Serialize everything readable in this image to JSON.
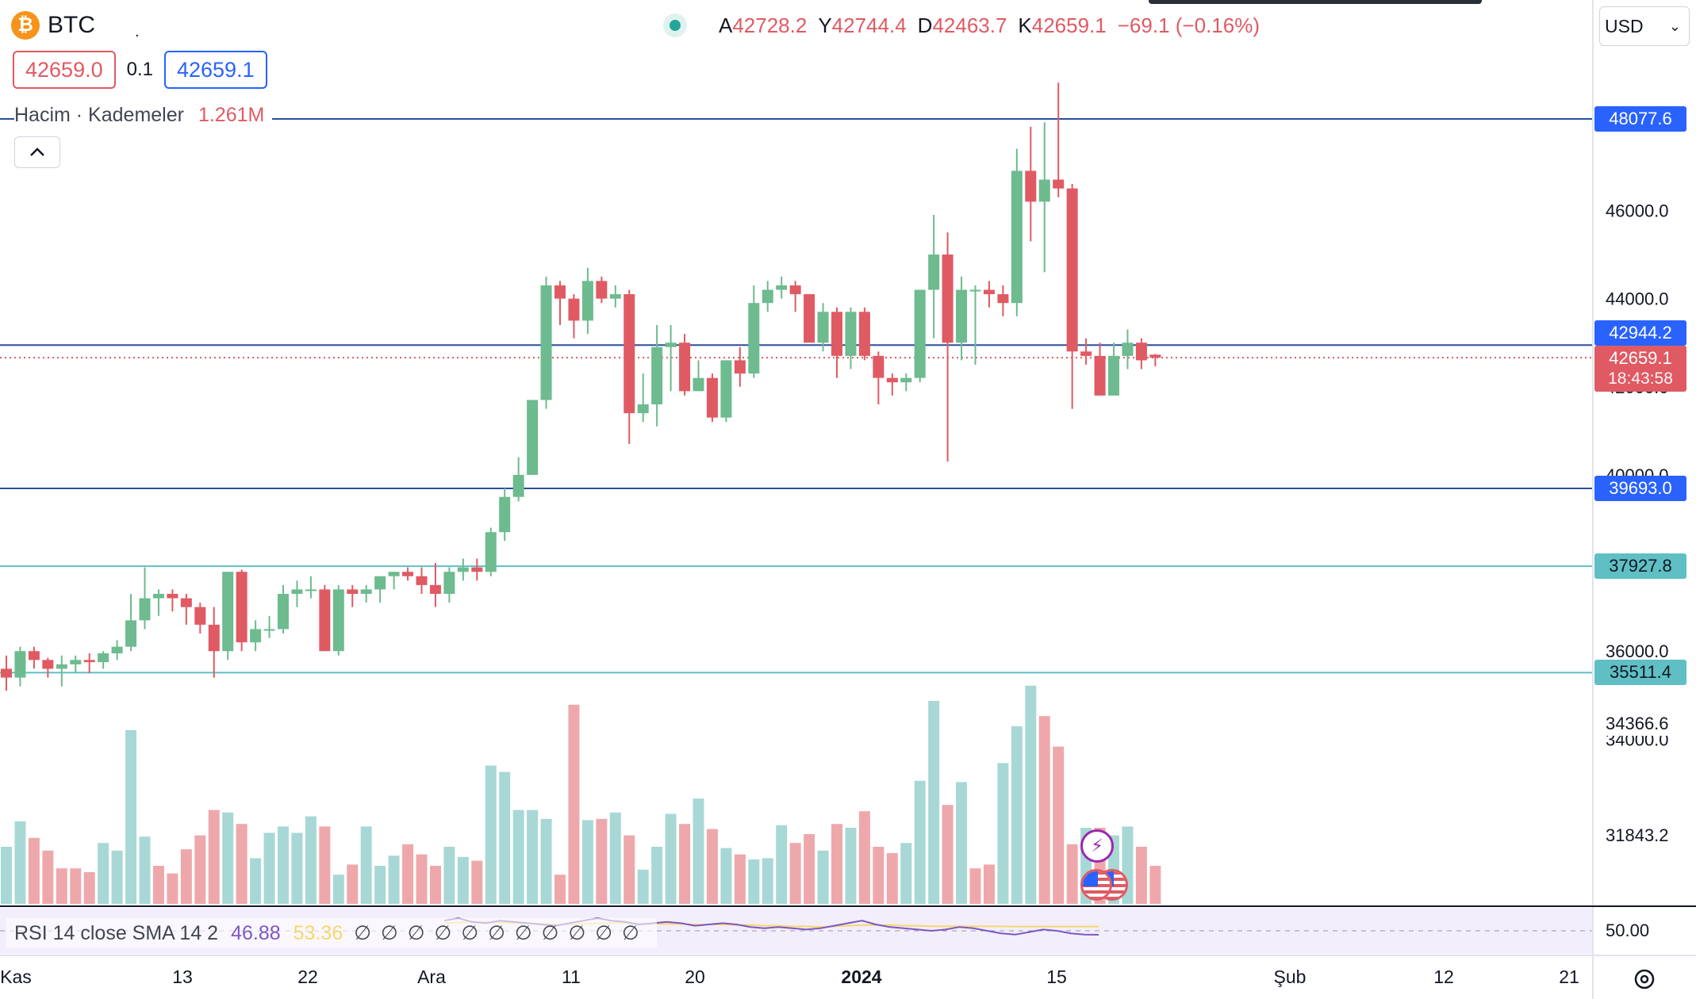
{
  "header": {
    "symbol": "BTC",
    "symbol_dot": ".",
    "ohlc": {
      "open_label": "A",
      "open": "42728.2",
      "high_label": "Y",
      "high": "42744.4",
      "low_label": "D",
      "low": "42463.7",
      "close_label": "K",
      "close": "42659.1",
      "change": "−69.1 (−0.16%)"
    },
    "sell_price": "42659.0",
    "spread": "0.1",
    "buy_price": "42659.1",
    "currency": "USD"
  },
  "volume_legend": {
    "title": "Hacim · Kademeler",
    "value": "1.261M"
  },
  "rsi_legend": {
    "title": "RSI 14 close SMA 14 2",
    "rsi": "46.88",
    "sma": "53.36",
    "nulls": "∅∅∅∅∅∅∅∅∅∅∅"
  },
  "price_axis": {
    "ticks": [
      {
        "value": 46000,
        "label": "46000.0"
      },
      {
        "value": 44000,
        "label": "44000.0"
      },
      {
        "value": 42000,
        "label": "42000.0"
      },
      {
        "value": 40000,
        "label": "40000.0"
      },
      {
        "value": 36000,
        "label": "36000.0"
      },
      {
        "value": 34000,
        "label": "34000.0"
      }
    ],
    "badges": {
      "l1": "48077.6",
      "l2": "42944.2",
      "current": "42659.1",
      "countdown": "18:43:58",
      "l3": "39693.0",
      "l4": "37927.8",
      "l5": "35511.4"
    },
    "volume_marks": {
      "v1": "34366.6",
      "v2": "31843.2"
    },
    "rsi_mark": "50.00"
  },
  "time_axis": [
    {
      "label": "Kas",
      "bold": false
    },
    {
      "label": "13",
      "bold": false
    },
    {
      "label": "22",
      "bold": false
    },
    {
      "label": "Ara",
      "bold": false
    },
    {
      "label": "11",
      "bold": false
    },
    {
      "label": "20",
      "bold": false
    },
    {
      "label": "2024",
      "bold": true
    },
    {
      "label": "15",
      "bold": false
    },
    {
      "label": "Şub",
      "bold": false
    },
    {
      "label": "12",
      "bold": false
    },
    {
      "label": "21",
      "bold": false
    }
  ],
  "colors": {
    "up": "#6dbb8f",
    "down": "#e05a63",
    "vol_up": "#a8d8d5",
    "vol_down": "#eea8ab",
    "line_blue": "#2a4d9b",
    "line_teal": "#5fbfc4"
  },
  "icons": [
    "bitcoin-logo",
    "chevron-up-icon",
    "chevron-down-icon",
    "lightning-icon",
    "us-flag-icon",
    "settings-icon"
  ],
  "chart_data": {
    "type": "candlestick",
    "title": "BTC",
    "ylim": [
      32000,
      49000
    ],
    "horizontal_levels": [
      48077.6,
      42944.2,
      39693.0,
      37927.8,
      35511.4
    ],
    "current_price": 42659.1,
    "candles": [
      [
        35600,
        35900,
        35100,
        35400
      ],
      [
        35400,
        36100,
        35200,
        36000
      ],
      [
        36000,
        36100,
        35600,
        35800
      ],
      [
        35800,
        35850,
        35400,
        35600
      ],
      [
        35600,
        35900,
        35200,
        35700
      ],
      [
        35700,
        35900,
        35500,
        35800
      ],
      [
        35800,
        35950,
        35500,
        35750
      ],
      [
        35750,
        36000,
        35600,
        35950
      ],
      [
        35950,
        36250,
        35800,
        36100
      ],
      [
        36100,
        37300,
        36000,
        36700
      ],
      [
        36700,
        37900,
        36500,
        37200
      ],
      [
        37200,
        37400,
        36800,
        37300
      ],
      [
        37300,
        37400,
        36900,
        37200
      ],
      [
        37200,
        37300,
        36600,
        37000
      ],
      [
        37000,
        37100,
        36400,
        36600
      ],
      [
        36600,
        37000,
        35400,
        36000
      ],
      [
        36000,
        37800,
        35800,
        37800
      ],
      [
        37800,
        37850,
        36000,
        36200
      ],
      [
        36200,
        36700,
        36000,
        36500
      ],
      [
        36500,
        36800,
        36300,
        36500
      ],
      [
        36500,
        37500,
        36400,
        37300
      ],
      [
        37300,
        37600,
        37000,
        37400
      ],
      [
        37400,
        37700,
        37200,
        37400
      ],
      [
        37400,
        37500,
        36000,
        36000
      ],
      [
        36000,
        37500,
        35900,
        37400
      ],
      [
        37400,
        37500,
        37000,
        37300
      ],
      [
        37300,
        37500,
        37100,
        37400
      ],
      [
        37400,
        37700,
        37100,
        37700
      ],
      [
        37700,
        37800,
        37400,
        37800
      ],
      [
        37800,
        37900,
        37600,
        37700
      ],
      [
        37700,
        37900,
        37300,
        37500
      ],
      [
        37500,
        38000,
        37000,
        37300
      ],
      [
        37300,
        37900,
        37100,
        37800
      ],
      [
        37800,
        38100,
        37600,
        37900
      ],
      [
        37900,
        38100,
        37600,
        37800
      ],
      [
        37800,
        38800,
        37700,
        38700
      ],
      [
        38700,
        39700,
        38500,
        39500
      ],
      [
        39500,
        40400,
        39400,
        40000
      ],
      [
        40000,
        41700,
        40000,
        41700
      ],
      [
        41700,
        44500,
        41500,
        44300
      ],
      [
        44300,
        44400,
        43400,
        44000
      ],
      [
        44000,
        44100,
        43100,
        43500
      ],
      [
        43500,
        44700,
        43200,
        44400
      ],
      [
        44400,
        44500,
        43900,
        44000
      ],
      [
        44000,
        44300,
        43800,
        44100
      ],
      [
        44100,
        44200,
        40700,
        41400
      ],
      [
        41400,
        42300,
        41200,
        41600
      ],
      [
        41600,
        43400,
        41100,
        42900
      ],
      [
        42900,
        43400,
        41900,
        43000
      ],
      [
        43000,
        43200,
        41800,
        41900
      ],
      [
        41900,
        42600,
        41900,
        42200
      ],
      [
        42200,
        42300,
        41200,
        41300
      ],
      [
        41300,
        42600,
        41200,
        42600
      ],
      [
        42600,
        42900,
        42000,
        42300
      ],
      [
        42300,
        44300,
        42200,
        43900
      ],
      [
        43900,
        44400,
        43700,
        44200
      ],
      [
        44200,
        44500,
        44000,
        44300
      ],
      [
        44300,
        44400,
        43700,
        44100
      ],
      [
        44100,
        44100,
        43100,
        43000
      ],
      [
        43000,
        43900,
        42800,
        43700
      ],
      [
        43700,
        43800,
        42200,
        42700
      ],
      [
        42700,
        43800,
        42400,
        43700
      ],
      [
        43700,
        43800,
        42600,
        42700
      ],
      [
        42700,
        42800,
        41600,
        42200
      ],
      [
        42200,
        42300,
        41800,
        42100
      ],
      [
        42100,
        42300,
        41900,
        42200
      ],
      [
        42200,
        44200,
        42100,
        44200
      ],
      [
        44200,
        45900,
        43100,
        45000
      ],
      [
        45000,
        45500,
        40300,
        43000
      ],
      [
        43000,
        44500,
        42600,
        44200
      ],
      [
        44200,
        44300,
        42500,
        44200
      ],
      [
        44200,
        44400,
        43800,
        44100
      ],
      [
        44100,
        44300,
        43600,
        43900
      ],
      [
        43900,
        47400,
        43600,
        46900
      ],
      [
        46900,
        47900,
        45300,
        46200
      ],
      [
        46200,
        48000,
        44600,
        46700
      ],
      [
        46700,
        48900,
        46300,
        46500
      ],
      [
        46500,
        46600,
        41500,
        42800
      ],
      [
        42800,
        43100,
        42500,
        42700
      ],
      [
        42700,
        43000,
        41800,
        41800
      ],
      [
        41800,
        43000,
        41800,
        42700
      ],
      [
        42700,
        43300,
        42400,
        43000
      ],
      [
        43000,
        43100,
        42400,
        42600
      ],
      [
        42728.2,
        42744.4,
        42463.7,
        42659.1
      ]
    ],
    "volumes": [
      0.45,
      0.65,
      0.52,
      0.42,
      0.28,
      0.28,
      0.25,
      0.48,
      0.42,
      1.37,
      0.53,
      0.3,
      0.24,
      0.43,
      0.54,
      0.74,
      0.72,
      0.63,
      0.36,
      0.56,
      0.61,
      0.56,
      0.69,
      0.61,
      0.23,
      0.31,
      0.61,
      0.3,
      0.38,
      0.47,
      0.39,
      0.3,
      0.45,
      0.37,
      0.34,
      1.09,
      1.04,
      0.74,
      0.74,
      0.67,
      0.23,
      1.57,
      0.66,
      0.67,
      0.72,
      0.54,
      0.27,
      0.45,
      0.71,
      0.63,
      0.83,
      0.59,
      0.44,
      0.39,
      0.35,
      0.36,
      0.62,
      0.48,
      0.55,
      0.42,
      0.63,
      0.6,
      0.73,
      0.45,
      0.4,
      0.48,
      0.97,
      1.6,
      0.78,
      0.96,
      0.28,
      0.31,
      1.11,
      1.4,
      1.72,
      1.48,
      1.24,
      0.47,
      0.6,
      0.6,
      0.54,
      0.61,
      0.45,
      0.3
    ],
    "volume_up": [
      true,
      true,
      false,
      false,
      false,
      false,
      false,
      true,
      true,
      true,
      true,
      false,
      false,
      false,
      false,
      false,
      true,
      false,
      true,
      true,
      true,
      true,
      true,
      false,
      true,
      false,
      true,
      true,
      true,
      false,
      false,
      false,
      true,
      true,
      false,
      true,
      true,
      true,
      true,
      true,
      false,
      false,
      true,
      false,
      true,
      false,
      true,
      true,
      true,
      false,
      true,
      false,
      true,
      false,
      true,
      true,
      true,
      false,
      false,
      true,
      false,
      true,
      false,
      false,
      false,
      true,
      true,
      true,
      false,
      true,
      false,
      false,
      true,
      true,
      true,
      false,
      false,
      false,
      true,
      false,
      true,
      true,
      false,
      false
    ],
    "rsi": [
      58,
      60,
      57,
      56,
      58,
      57,
      56,
      55,
      54,
      56,
      58,
      60,
      58,
      57,
      55,
      56,
      57,
      56,
      54,
      55,
      56,
      55,
      53,
      52,
      53,
      52,
      51,
      52,
      54,
      56,
      58,
      55,
      53,
      52,
      51,
      50,
      51,
      53,
      52,
      50,
      48,
      47,
      49,
      51,
      50,
      48,
      47,
      46.88
    ],
    "rsi_sma": [
      56,
      56.5,
      57,
      57,
      56.5,
      56,
      56,
      55.5,
      55,
      55,
      55.5,
      56,
      56,
      56,
      55.5,
      55.5,
      55.5,
      55.5,
      55,
      55,
      55,
      54.5,
      54.5,
      54,
      54,
      53.5,
      53.5,
      53,
      53.5,
      54,
      54.5,
      54.5,
      54.5,
      54,
      54,
      53.5,
      53.5,
      53.5,
      53.5,
      53.5,
      53.5,
      53.4,
      53.4,
      53.4,
      53.4,
      53.4,
      53.36,
      53.36
    ]
  }
}
